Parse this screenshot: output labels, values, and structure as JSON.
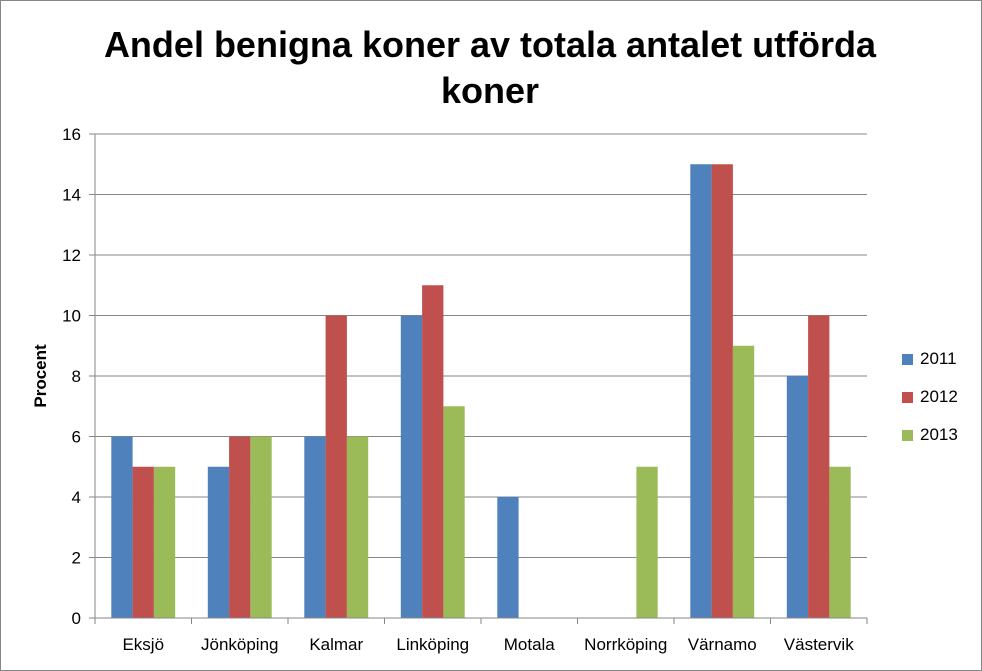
{
  "chart_data": {
    "type": "bar",
    "title": "Andel benigna koner av totala antalet utförda koner",
    "xlabel": "",
    "ylabel": "Procent",
    "ylim": [
      0,
      16
    ],
    "yticks": [
      0,
      2,
      4,
      6,
      8,
      10,
      12,
      14,
      16
    ],
    "grid": true,
    "legend_position": "right",
    "categories": [
      "Eksjö",
      "Jönköping",
      "Kalmar",
      "Linköping",
      "Motala",
      "Norrköping",
      "Värnamo",
      "Västervik"
    ],
    "series": [
      {
        "name": "2011",
        "color": "#4F81BD",
        "values": [
          6,
          5,
          6,
          10,
          4,
          0,
          15,
          8
        ]
      },
      {
        "name": "2012",
        "color": "#C0504D",
        "values": [
          5,
          6,
          10,
          11,
          0,
          0,
          15,
          10
        ]
      },
      {
        "name": "2013",
        "color": "#9BBB59",
        "values": [
          5,
          6,
          6,
          7,
          0,
          5,
          9,
          5
        ]
      }
    ]
  }
}
